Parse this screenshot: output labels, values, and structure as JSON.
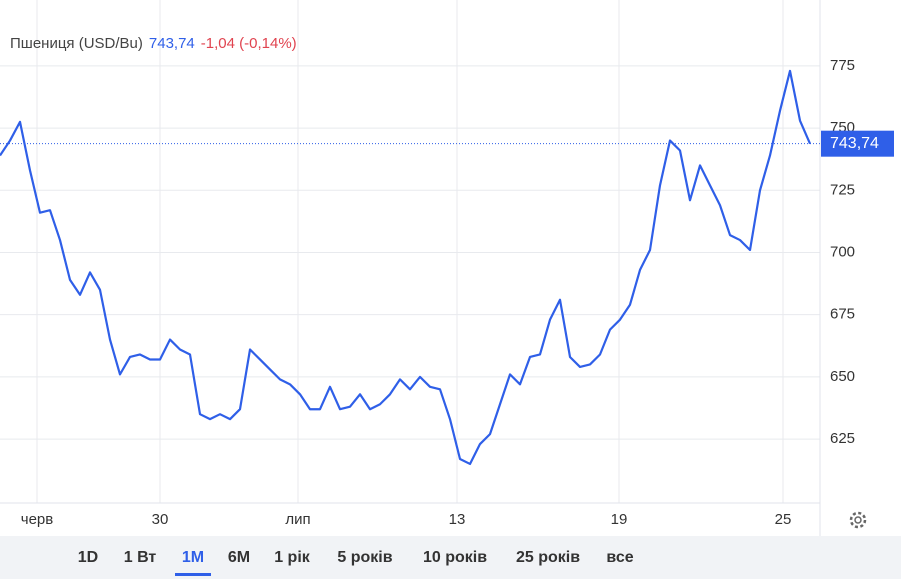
{
  "chart_data": {
    "type": "line",
    "title": "Пшениця (USD/Bu)",
    "price": "743,74",
    "change": "-1,04 (-0,14%)",
    "price_label": {
      "value": 743.74,
      "label": "743,74"
    },
    "x": [
      0,
      1,
      2,
      3,
      4,
      5,
      6,
      7,
      8,
      9,
      10,
      11,
      12,
      13,
      14,
      15,
      16,
      17,
      18,
      19,
      20,
      21,
      22,
      23,
      24,
      25,
      26,
      27,
      28,
      29,
      30,
      31,
      32,
      33,
      34,
      35,
      36,
      37,
      38,
      39,
      40,
      41,
      42,
      43,
      44,
      45,
      46,
      47,
      48,
      49,
      50,
      51,
      52,
      53,
      54,
      55,
      56,
      57,
      58,
      59,
      60,
      61,
      62,
      63,
      64,
      65,
      66,
      67,
      68,
      69,
      70,
      71,
      72,
      73,
      74,
      75,
      76,
      77,
      78,
      79,
      80,
      81
    ],
    "series": [
      {
        "name": "Пшениця (USD/Bu)",
        "color": "#2f5fe8",
        "values": [
          739,
          745,
          752.5,
          733,
          716,
          717,
          705,
          689,
          683,
          692,
          685,
          665,
          651,
          658,
          659,
          657,
          657,
          665,
          661,
          659,
          635,
          633,
          635,
          633,
          637,
          661,
          657,
          653,
          649,
          647,
          643,
          637,
          637,
          646,
          637,
          638,
          643,
          637,
          639,
          643,
          649,
          645,
          650,
          646,
          645,
          633,
          617,
          615,
          623,
          627,
          639,
          651,
          647,
          658,
          659,
          673,
          681,
          658,
          654,
          655,
          659,
          669,
          673,
          679,
          693,
          701,
          727,
          745,
          741,
          721,
          735,
          727,
          719,
          707,
          705,
          701,
          725,
          739,
          757,
          773,
          753,
          743.74
        ]
      }
    ],
    "xlim": [
      0,
      82
    ],
    "xticks": [
      {
        "value": 3.7,
        "label": "черв"
      },
      {
        "value": 16,
        "label": "30"
      },
      {
        "value": 29.8,
        "label": "лип"
      },
      {
        "value": 45.7,
        "label": "13"
      },
      {
        "value": 61.9,
        "label": "19"
      },
      {
        "value": 78.3,
        "label": "25"
      }
    ],
    "ylim": [
      599.3,
      801.5
    ],
    "yticks": [
      625,
      650,
      675,
      700,
      725,
      750,
      775
    ],
    "grid": true,
    "ranges": [
      "1D",
      "1 Вт",
      "1M",
      "6M",
      "1 рік",
      "5 років",
      "10 років",
      "25 років",
      "все"
    ],
    "selected_range": 2
  }
}
